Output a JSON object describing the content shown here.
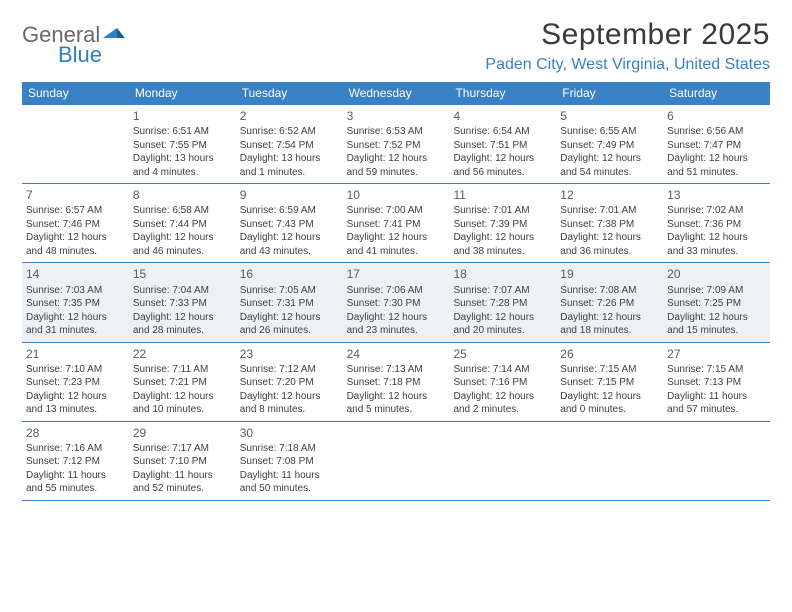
{
  "brand": {
    "line1": "General",
    "line2": "Blue"
  },
  "title": "September 2025",
  "location": "Paden City, West Virginia, United States",
  "colors": {
    "header_bg": "#3981c4",
    "header_text": "#ffffff",
    "rule": "#3981c4",
    "shaded_bg": "#eef1f3",
    "body_text": "#404040",
    "location_text": "#3981c4",
    "logo_gray": "#6a6a6a",
    "logo_blue": "#2d7fc1"
  },
  "dow": [
    "Sunday",
    "Monday",
    "Tuesday",
    "Wednesday",
    "Thursday",
    "Friday",
    "Saturday"
  ],
  "weeks": [
    [
      {
        "n": "",
        "sr": "",
        "ss": "",
        "dl": ""
      },
      {
        "n": "1",
        "sr": "Sunrise: 6:51 AM",
        "ss": "Sunset: 7:55 PM",
        "dl": "Daylight: 13 hours and 4 minutes."
      },
      {
        "n": "2",
        "sr": "Sunrise: 6:52 AM",
        "ss": "Sunset: 7:54 PM",
        "dl": "Daylight: 13 hours and 1 minutes."
      },
      {
        "n": "3",
        "sr": "Sunrise: 6:53 AM",
        "ss": "Sunset: 7:52 PM",
        "dl": "Daylight: 12 hours and 59 minutes."
      },
      {
        "n": "4",
        "sr": "Sunrise: 6:54 AM",
        "ss": "Sunset: 7:51 PM",
        "dl": "Daylight: 12 hours and 56 minutes."
      },
      {
        "n": "5",
        "sr": "Sunrise: 6:55 AM",
        "ss": "Sunset: 7:49 PM",
        "dl": "Daylight: 12 hours and 54 minutes."
      },
      {
        "n": "6",
        "sr": "Sunrise: 6:56 AM",
        "ss": "Sunset: 7:47 PM",
        "dl": "Daylight: 12 hours and 51 minutes."
      }
    ],
    [
      {
        "n": "7",
        "sr": "Sunrise: 6:57 AM",
        "ss": "Sunset: 7:46 PM",
        "dl": "Daylight: 12 hours and 48 minutes."
      },
      {
        "n": "8",
        "sr": "Sunrise: 6:58 AM",
        "ss": "Sunset: 7:44 PM",
        "dl": "Daylight: 12 hours and 46 minutes."
      },
      {
        "n": "9",
        "sr": "Sunrise: 6:59 AM",
        "ss": "Sunset: 7:43 PM",
        "dl": "Daylight: 12 hours and 43 minutes."
      },
      {
        "n": "10",
        "sr": "Sunrise: 7:00 AM",
        "ss": "Sunset: 7:41 PM",
        "dl": "Daylight: 12 hours and 41 minutes."
      },
      {
        "n": "11",
        "sr": "Sunrise: 7:01 AM",
        "ss": "Sunset: 7:39 PM",
        "dl": "Daylight: 12 hours and 38 minutes."
      },
      {
        "n": "12",
        "sr": "Sunrise: 7:01 AM",
        "ss": "Sunset: 7:38 PM",
        "dl": "Daylight: 12 hours and 36 minutes."
      },
      {
        "n": "13",
        "sr": "Sunrise: 7:02 AM",
        "ss": "Sunset: 7:36 PM",
        "dl": "Daylight: 12 hours and 33 minutes."
      }
    ],
    [
      {
        "n": "14",
        "sr": "Sunrise: 7:03 AM",
        "ss": "Sunset: 7:35 PM",
        "dl": "Daylight: 12 hours and 31 minutes."
      },
      {
        "n": "15",
        "sr": "Sunrise: 7:04 AM",
        "ss": "Sunset: 7:33 PM",
        "dl": "Daylight: 12 hours and 28 minutes."
      },
      {
        "n": "16",
        "sr": "Sunrise: 7:05 AM",
        "ss": "Sunset: 7:31 PM",
        "dl": "Daylight: 12 hours and 26 minutes."
      },
      {
        "n": "17",
        "sr": "Sunrise: 7:06 AM",
        "ss": "Sunset: 7:30 PM",
        "dl": "Daylight: 12 hours and 23 minutes."
      },
      {
        "n": "18",
        "sr": "Sunrise: 7:07 AM",
        "ss": "Sunset: 7:28 PM",
        "dl": "Daylight: 12 hours and 20 minutes."
      },
      {
        "n": "19",
        "sr": "Sunrise: 7:08 AM",
        "ss": "Sunset: 7:26 PM",
        "dl": "Daylight: 12 hours and 18 minutes."
      },
      {
        "n": "20",
        "sr": "Sunrise: 7:09 AM",
        "ss": "Sunset: 7:25 PM",
        "dl": "Daylight: 12 hours and 15 minutes."
      }
    ],
    [
      {
        "n": "21",
        "sr": "Sunrise: 7:10 AM",
        "ss": "Sunset: 7:23 PM",
        "dl": "Daylight: 12 hours and 13 minutes."
      },
      {
        "n": "22",
        "sr": "Sunrise: 7:11 AM",
        "ss": "Sunset: 7:21 PM",
        "dl": "Daylight: 12 hours and 10 minutes."
      },
      {
        "n": "23",
        "sr": "Sunrise: 7:12 AM",
        "ss": "Sunset: 7:20 PM",
        "dl": "Daylight: 12 hours and 8 minutes."
      },
      {
        "n": "24",
        "sr": "Sunrise: 7:13 AM",
        "ss": "Sunset: 7:18 PM",
        "dl": "Daylight: 12 hours and 5 minutes."
      },
      {
        "n": "25",
        "sr": "Sunrise: 7:14 AM",
        "ss": "Sunset: 7:16 PM",
        "dl": "Daylight: 12 hours and 2 minutes."
      },
      {
        "n": "26",
        "sr": "Sunrise: 7:15 AM",
        "ss": "Sunset: 7:15 PM",
        "dl": "Daylight: 12 hours and 0 minutes."
      },
      {
        "n": "27",
        "sr": "Sunrise: 7:15 AM",
        "ss": "Sunset: 7:13 PM",
        "dl": "Daylight: 11 hours and 57 minutes."
      }
    ],
    [
      {
        "n": "28",
        "sr": "Sunrise: 7:16 AM",
        "ss": "Sunset: 7:12 PM",
        "dl": "Daylight: 11 hours and 55 minutes."
      },
      {
        "n": "29",
        "sr": "Sunrise: 7:17 AM",
        "ss": "Sunset: 7:10 PM",
        "dl": "Daylight: 11 hours and 52 minutes."
      },
      {
        "n": "30",
        "sr": "Sunrise: 7:18 AM",
        "ss": "Sunset: 7:08 PM",
        "dl": "Daylight: 11 hours and 50 minutes."
      },
      {
        "n": "",
        "sr": "",
        "ss": "",
        "dl": ""
      },
      {
        "n": "",
        "sr": "",
        "ss": "",
        "dl": ""
      },
      {
        "n": "",
        "sr": "",
        "ss": "",
        "dl": ""
      },
      {
        "n": "",
        "sr": "",
        "ss": "",
        "dl": ""
      }
    ]
  ],
  "shaded_week_index": 2
}
